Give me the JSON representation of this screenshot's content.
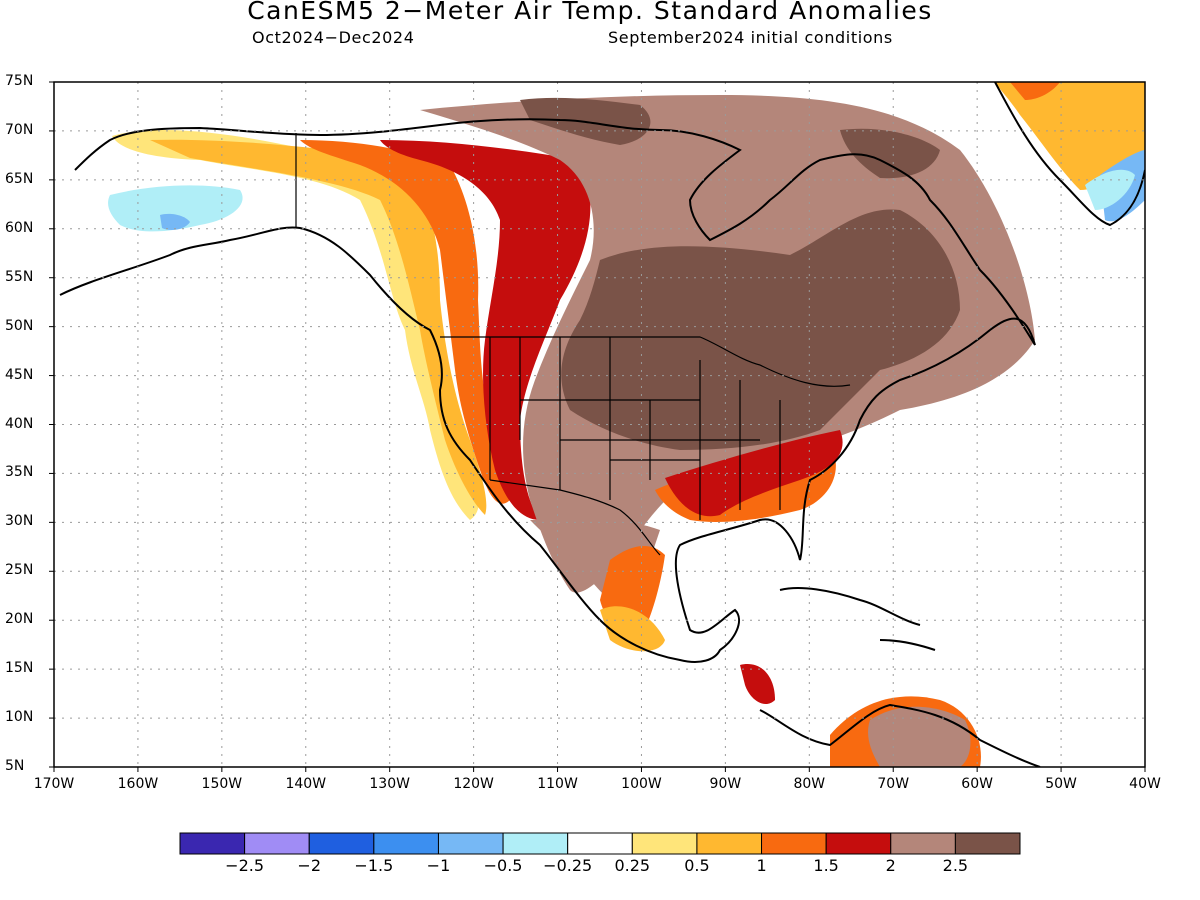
{
  "title": "CanESM5 2−Meter Air Temp. Standard Anomalies",
  "subtitle_left": "Oct2024−Dec2024",
  "subtitle_right": "September2024 initial conditions",
  "map": {
    "lon_range": [
      -170,
      -40
    ],
    "lat_range": [
      5,
      75
    ],
    "gridlines": "dotted",
    "lat_labels": [
      "75N",
      "70N",
      "65N",
      "60N",
      "55N",
      "50N",
      "45N",
      "40N",
      "35N",
      "30N",
      "25N",
      "20N",
      "15N",
      "10N",
      "5N"
    ],
    "lon_labels": [
      "170W",
      "160W",
      "150W",
      "140W",
      "130W",
      "120W",
      "110W",
      "100W",
      "90W",
      "80W",
      "70W",
      "60W",
      "50W",
      "40W"
    ]
  },
  "colorbar": {
    "colors": [
      "#3a27b0",
      "#a08cf5",
      "#1f5fe0",
      "#3c8ff0",
      "#76b8f5",
      "#b0eef7",
      "#ffffff",
      "#ffe57a",
      "#ffb830",
      "#f86a10",
      "#c50d0d",
      "#b4867a",
      "#7a5348"
    ],
    "labels": [
      "−2.5",
      "−2",
      "−1.5",
      "−1",
      "−0.5",
      "−0.25",
      "0.25",
      "0.5",
      "1",
      "1.5",
      "2",
      "2.5"
    ]
  },
  "regions": [
    {
      "name": "Arctic and eastern Canada, central/northern US",
      "category": "> 2.5",
      "color": "#7a5348"
    },
    {
      "name": "Western/central North America band",
      "category": "2 to 2.5",
      "color": "#b4867a"
    },
    {
      "name": "Northwest Canada, Southeast US",
      "category": "1.5 to 2",
      "color": "#c50d0d"
    },
    {
      "name": "Pacific coast, Mexico",
      "category": "1 to 1.5",
      "color": "#f86a10"
    },
    {
      "name": "Alaska interior / Gulf coast of Alaska",
      "category": "0.5 to 1",
      "color": "#ffb830"
    },
    {
      "name": "Southwest Alaska",
      "category": "-0.5 to -0.25",
      "color": "#b0eef7"
    },
    {
      "name": "Southeast Greenland",
      "category": "-1 to -0.5",
      "color": "#76b8f5"
    }
  ]
}
